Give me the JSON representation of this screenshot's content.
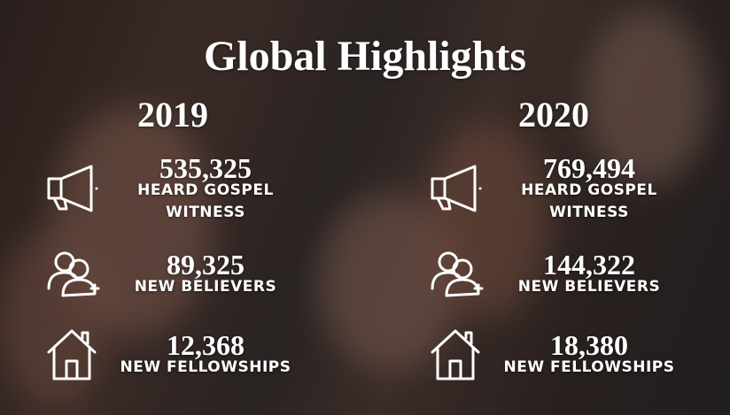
{
  "title": "Global Highlights",
  "columns": [
    {
      "year": "2019",
      "items": [
        {
          "value": "535,325",
          "label": "HEARD GOSPEL WITNESS"
        },
        {
          "value": "89,325",
          "label": "NEW BELIEVERS"
        },
        {
          "value": "12,368",
          "label": "NEW FELLOWSHIPS"
        }
      ]
    },
    {
      "year": "2020",
      "items": [
        {
          "value": "769,494",
          "label": "HEARD GOSPEL WITNESS"
        },
        {
          "value": "144,322",
          "label": "NEW BELIEVERS"
        },
        {
          "value": "18,380",
          "label": "NEW FELLOWSHIPS"
        }
      ]
    }
  ]
}
